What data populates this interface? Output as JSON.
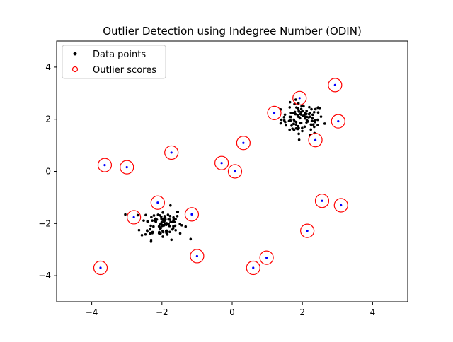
{
  "chart_data": {
    "type": "scatter",
    "title": "Outlier Detection using Indegree Number (ODIN)",
    "xlabel": "",
    "ylabel": "",
    "xlim": [
      -5,
      5
    ],
    "ylim": [
      -5,
      5
    ],
    "xticks": [
      -4,
      -2,
      0,
      2,
      4
    ],
    "yticks": [
      -4,
      -2,
      0,
      2,
      4
    ],
    "xtick_labels": [
      "−4",
      "−2",
      "0",
      "2",
      "4"
    ],
    "ytick_labels": [
      "−4",
      "−2",
      "0",
      "2",
      "4"
    ],
    "grid": false,
    "legend": {
      "location": "upper left",
      "entries": [
        {
          "label": "Data points",
          "marker": "filled-dot",
          "color": "#000000"
        },
        {
          "label": "Outlier scores",
          "marker": "open-circle",
          "color": "#ff0000"
        }
      ]
    },
    "colors": {
      "inlier": "#000000",
      "outlier_point": "#0000ff",
      "score_circle": "#ff0000"
    },
    "clusters": [
      {
        "center": [
          2.0,
          2.0
        ],
        "spread": 0.3,
        "n": 100,
        "color": "#000000"
      },
      {
        "center": [
          -2.0,
          -2.0
        ],
        "spread": 0.3,
        "n": 100,
        "color": "#000000"
      }
    ],
    "outliers": [
      {
        "x": 2.93,
        "y": 3.31
      },
      {
        "x": 1.92,
        "y": 2.81
      },
      {
        "x": 1.2,
        "y": 2.24
      },
      {
        "x": 3.02,
        "y": 1.92
      },
      {
        "x": 2.37,
        "y": 1.2
      },
      {
        "x": 0.32,
        "y": 1.09
      },
      {
        "x": -1.73,
        "y": 0.72
      },
      {
        "x": -3.63,
        "y": 0.24
      },
      {
        "x": -3.0,
        "y": 0.16
      },
      {
        "x": -0.3,
        "y": 0.32
      },
      {
        "x": 0.08,
        "y": 0.0
      },
      {
        "x": -2.12,
        "y": -1.2
      },
      {
        "x": -2.8,
        "y": -1.76
      },
      {
        "x": -1.15,
        "y": -1.65
      },
      {
        "x": 2.56,
        "y": -1.13
      },
      {
        "x": 3.1,
        "y": -1.3
      },
      {
        "x": 2.14,
        "y": -2.28
      },
      {
        "x": -1.0,
        "y": -3.25
      },
      {
        "x": 0.98,
        "y": -3.31
      },
      {
        "x": 0.6,
        "y": -3.7
      },
      {
        "x": -3.75,
        "y": -3.7
      }
    ]
  }
}
